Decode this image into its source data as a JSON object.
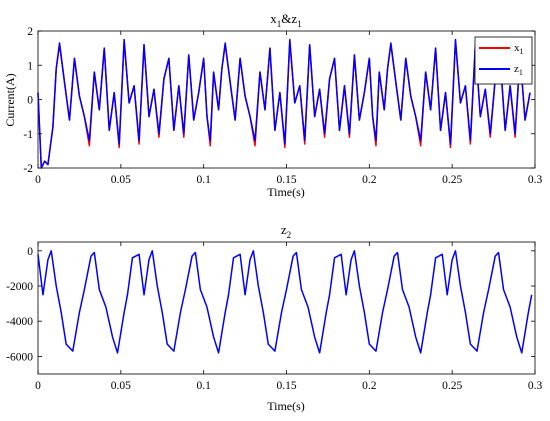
{
  "chart_data": [
    {
      "type": "line",
      "title": "x",
      "title_sub": "1",
      "title_mid": "&z",
      "title_sub2": "1",
      "xlabel": "Time(s)",
      "ylabel": "Current(A)",
      "xlim": [
        0,
        0.3
      ],
      "ylim": [
        -2,
        2
      ],
      "x_ticks": [
        "0",
        "0.05",
        "0.1",
        "0.15",
        "0.2",
        "0.25",
        "0.3"
      ],
      "y_ticks": [
        "-2",
        "-1",
        "0",
        "1",
        "2"
      ],
      "y_tick_values": [
        -2,
        -1,
        0,
        1,
        2
      ],
      "grid": false,
      "legend_position": "top-right",
      "series": [
        {
          "name": "x",
          "name_sub": "1",
          "color": "#ff0000",
          "x": [
            0,
            0.002,
            0.004,
            0.006,
            0.009,
            0.011,
            0.013,
            0.016,
            0.019,
            0.022,
            0.025,
            0.028,
            0.031,
            0.034,
            0.037,
            0.04,
            0.043,
            0.046,
            0.049,
            0.052,
            0.055,
            0.058,
            0.061,
            0.064,
            0.067,
            0.07,
            0.073,
            0.076,
            0.079,
            0.082,
            0.085,
            0.088,
            0.091,
            0.094,
            0.097,
            0.1
          ],
          "values": [
            0.2,
            -2.0,
            -1.8,
            -1.9,
            -0.8,
            0.9,
            1.6,
            0.5,
            -0.6,
            1.2,
            0.1,
            -0.5,
            -1.35,
            0.8,
            -0.3,
            1.5,
            -0.9,
            0.2,
            -1.4,
            1.7,
            -0.1,
            0.4,
            -1.3,
            1.6,
            -0.5,
            0.3,
            -1.1,
            0.6,
            1.2,
            -0.9,
            0.4,
            -1.1,
            1.3,
            -0.6,
            0.2,
            1.2
          ]
        },
        {
          "name": "z",
          "name_sub": "1",
          "color": "#0000ff",
          "x": [
            0,
            0.002,
            0.004,
            0.006,
            0.009,
            0.011,
            0.013,
            0.016,
            0.019,
            0.022,
            0.025,
            0.028,
            0.031,
            0.034,
            0.037,
            0.04,
            0.043,
            0.046,
            0.049,
            0.052,
            0.055,
            0.058,
            0.061,
            0.064,
            0.067,
            0.07,
            0.073,
            0.076,
            0.079,
            0.082,
            0.085,
            0.088,
            0.091,
            0.094,
            0.097,
            0.1
          ],
          "values": [
            0.2,
            -2.0,
            -1.8,
            -1.9,
            -0.8,
            0.9,
            1.65,
            0.5,
            -0.6,
            1.2,
            0.1,
            -0.5,
            -1.2,
            0.8,
            -0.3,
            1.5,
            -0.9,
            0.2,
            -1.3,
            1.75,
            -0.1,
            0.4,
            -1.2,
            1.6,
            -0.5,
            0.3,
            -1.0,
            0.6,
            1.2,
            -0.9,
            0.4,
            -1.0,
            1.3,
            -0.6,
            0.2,
            1.2
          ]
        }
      ]
    },
    {
      "type": "line",
      "title": "z",
      "title_sub": "2",
      "xlabel": "Time(s)",
      "ylabel": "",
      "xlim": [
        0,
        0.3
      ],
      "ylim": [
        -7000,
        500
      ],
      "x_ticks": [
        "0",
        "0.05",
        "0.1",
        "0.15",
        "0.2",
        "0.25",
        "0.3"
      ],
      "y_ticks": [
        "0",
        "-2000",
        "-4000",
        "-6000"
      ],
      "y_tick_values": [
        0,
        -2000,
        -4000,
        -6000
      ],
      "grid": false,
      "series": [
        {
          "color": "#0000ff",
          "x": [
            0,
            0.003,
            0.006,
            0.008,
            0.011,
            0.014,
            0.017,
            0.021,
            0.025,
            0.028,
            0.032,
            0.034,
            0.037,
            0.041,
            0.045,
            0.048,
            0.052,
            0.054,
            0.057,
            0.061
          ],
          "values": [
            -200,
            -2500,
            -500,
            0,
            -2000,
            -3500,
            -5300,
            -5700,
            -3500,
            -2200,
            -300,
            -100,
            -2200,
            -3200,
            -4900,
            -5800,
            -3500,
            -2500,
            -400,
            -200
          ]
        }
      ]
    }
  ]
}
